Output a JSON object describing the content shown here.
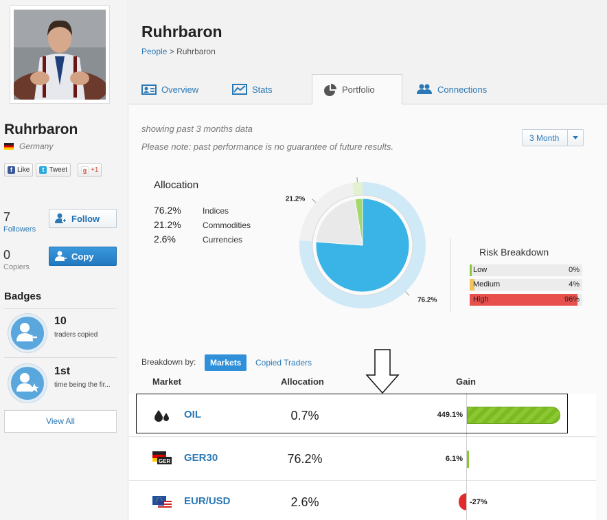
{
  "profile": {
    "name": "Ruhrbaron",
    "country": "Germany",
    "social": {
      "like": "Like",
      "tweet": "Tweet",
      "gplus": "+1"
    },
    "followers": {
      "count": "7",
      "label": "Followers"
    },
    "copiers": {
      "count": "0",
      "label": "Copiers"
    },
    "follow_label": "Follow",
    "copy_label": "Copy",
    "badges_title": "Badges",
    "badges": [
      {
        "num": "10",
        "text": "traders copied"
      },
      {
        "num": "1st",
        "text": "time being the fir..."
      }
    ],
    "view_all": "View All"
  },
  "header": {
    "title": "Ruhrbaron",
    "breadcrumb_link": "People",
    "breadcrumb_sep": ">",
    "breadcrumb_current": "Ruhrbaron"
  },
  "tabs": [
    {
      "label": "Overview",
      "icon": "profile-card-icon"
    },
    {
      "label": "Stats",
      "icon": "line-chart-icon"
    },
    {
      "label": "Portfolio",
      "icon": "pie-chart-icon",
      "active": true
    },
    {
      "label": "Connections",
      "icon": "people-icon"
    }
  ],
  "notes": {
    "line1": "showing past 3 months data",
    "line2": "Please note: past performance is no guarantee of future results."
  },
  "period_select": "3 Month",
  "allocation": {
    "title": "Allocation",
    "items": [
      {
        "pct": "76.2%",
        "name": "Indices"
      },
      {
        "pct": "21.2%",
        "name": "Commodities"
      },
      {
        "pct": "2.6%",
        "name": "Currencies"
      }
    ]
  },
  "chart_data": {
    "type": "pie",
    "categories": [
      "Indices",
      "Commodities",
      "Currencies"
    ],
    "values": [
      76.2,
      21.2,
      2.6
    ],
    "labels": [
      "76.2%",
      "21.2%",
      "2.6%"
    ],
    "colors": [
      "#3ab4e6",
      "#e9e9e9",
      "#a3d86a"
    ]
  },
  "risk": {
    "title": "Risk Breakdown",
    "rows": [
      {
        "label": "Low",
        "value": "0%",
        "level": 0.0,
        "color": "#8dc63f"
      },
      {
        "label": "Medium",
        "value": "4%",
        "level": 0.04,
        "color": "#f5c35a"
      },
      {
        "label": "High",
        "value": "96%",
        "level": 0.96,
        "color": "#e8504d"
      }
    ]
  },
  "breakdown": {
    "label": "Breakdown by:",
    "tabs": [
      "Markets",
      "Copied Traders"
    ]
  },
  "table": {
    "headers": {
      "market": "Market",
      "allocation": "Allocation",
      "gain": "Gain"
    },
    "rows": [
      {
        "market": "OIL",
        "allocation": "0.7%",
        "gain": "449.1%",
        "icon": "oil-drops-icon"
      },
      {
        "market": "GER30",
        "allocation": "76.2%",
        "gain": "6.1%",
        "icon": "german-flag-icon"
      },
      {
        "market": "EUR/USD",
        "allocation": "2.6%",
        "gain": "-27%",
        "icon": "eu-us-flags-icon"
      }
    ]
  }
}
